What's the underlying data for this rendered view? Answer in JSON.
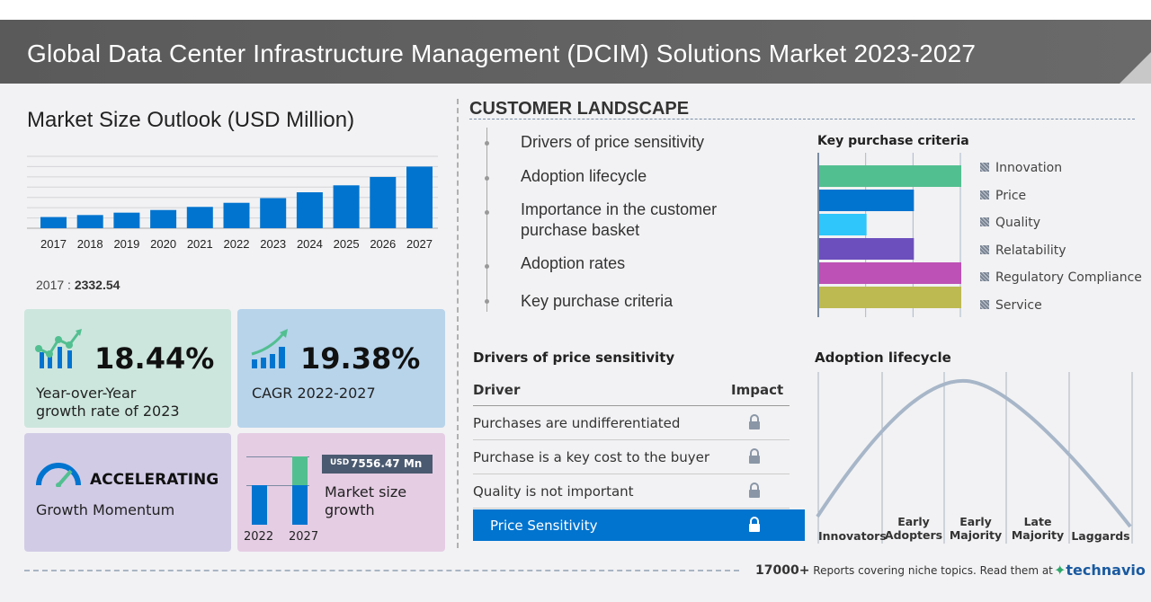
{
  "header": {
    "title": "Global Data Center Infrastructure Management (DCIM) Solutions Market 2023-2027"
  },
  "market_outlook": {
    "title": "Market Size Outlook (USD Million)",
    "base_year": "2017",
    "separator": ":",
    "base_value": "2332.54"
  },
  "chart_data": {
    "type": "bar",
    "title": "Market Size Outlook (USD Million)",
    "categories": [
      "2017",
      "2018",
      "2019",
      "2020",
      "2021",
      "2022",
      "2023",
      "2024",
      "2025",
      "2026",
      "2027"
    ],
    "values": [
      2332.54,
      2750,
      3250,
      3800,
      4450,
      5303,
      6281,
      7500,
      8950,
      10700,
      12860
    ],
    "ylim": [
      0,
      15000
    ],
    "grid": true,
    "color": "#0174cf"
  },
  "cards": {
    "yoy": {
      "value": "18.44%",
      "label_line1": "Year-over-Year",
      "label_line2": "growth rate of 2023",
      "bg": "#cce6dd"
    },
    "cagr": {
      "value": "19.38%",
      "label": "CAGR  2022-2027",
      "bg": "#b7d4eb"
    },
    "momentum": {
      "value": "ACCELERATING",
      "label": "Growth Momentum",
      "bg": "#d2cbe6"
    },
    "growth": {
      "currency": "USD",
      "value": "7556.47 Mn",
      "label_line1": "Market size",
      "label_line2": "growth",
      "year_start": "2022",
      "year_end": "2027",
      "bg": "#e5cde4"
    }
  },
  "customer_landscape": {
    "title": "CUSTOMER LANDSCAPE",
    "items": [
      "Drivers of price sensitivity",
      "Adoption lifecycle",
      "Importance in the customer",
      "purchase basket",
      "Adoption rates",
      "Key purchase criteria"
    ]
  },
  "key_purchase_criteria": {
    "title": "Key purchase criteria",
    "scale_max": 3,
    "items": [
      {
        "label": "Innovation",
        "level": 3,
        "color": "#52bf90"
      },
      {
        "label": "Price",
        "level": 2,
        "color": "#0174cf"
      },
      {
        "label": "Quality",
        "level": 1,
        "color": "#2ec6fb"
      },
      {
        "label": "Relatability",
        "level": 2,
        "color": "#6c4fbd"
      },
      {
        "label": "Regulatory Compliance",
        "level": 3,
        "color": "#bd51b5"
      },
      {
        "label": "Service",
        "level": 3,
        "color": "#bdba52"
      }
    ]
  },
  "price_sensitivity": {
    "title": "Drivers of price sensitivity",
    "col_driver": "Driver",
    "col_impact": "Impact",
    "rows": [
      "Purchases are undifferentiated",
      "Purchase is a key cost to the buyer",
      "Quality is not important"
    ],
    "highlight": "Price Sensitivity",
    "highlight_color": "#0174cf"
  },
  "adoption": {
    "title": "Adoption lifecycle",
    "stages": [
      [
        "Innovators",
        ""
      ],
      [
        "Early",
        "Adopters"
      ],
      [
        "Early",
        "Majority"
      ],
      [
        "Late",
        "Majority"
      ],
      [
        "Laggards",
        ""
      ]
    ]
  },
  "footer": {
    "count": "17000+",
    "text": "Reports covering niche topics. Read them at",
    "brand": "technavio"
  }
}
